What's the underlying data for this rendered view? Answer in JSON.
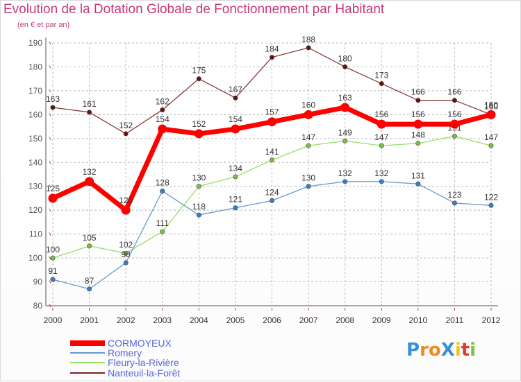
{
  "header": {
    "title": "Evolution de la Dotation Globale de Fonctionnement par Habitant",
    "subtitle": "(en € et par an)"
  },
  "logo": {
    "text": "ProXiti",
    "letters": [
      "P",
      "r",
      "o",
      "X",
      "i",
      "t",
      "i"
    ],
    "colors": [
      "#3a8fd6",
      "#f08a1c",
      "#f08a1c",
      "#3a8fd6",
      "#f0c419",
      "#e03a2a",
      "#7ac143"
    ]
  },
  "colors": {
    "CORMOYEUX": "#ff0000",
    "Romery": "#6699cc",
    "Fleury-la-Rivière": "#99dd66",
    "Nanteuil-la-Forêt": "#772222",
    "axis": "#555555",
    "grid": "#bbbbbb"
  },
  "chart_data": {
    "type": "line",
    "title": "Evolution de la Dotation Globale de Fonctionnement par Habitant",
    "subtitle": "(en € et par an)",
    "xlabel": "",
    "ylabel": "",
    "ylim": [
      80,
      190
    ],
    "yticks": [
      80,
      90,
      100,
      110,
      120,
      130,
      140,
      150,
      160,
      170,
      180,
      190
    ],
    "grid": true,
    "x": [
      "2000",
      "2001",
      "2002",
      "2003",
      "2004",
      "2005",
      "2006",
      "2007",
      "2008",
      "2009",
      "2010",
      "2011",
      "2012"
    ],
    "series": [
      {
        "name": "CORMOYEUX",
        "values": [
          125,
          132,
          120,
          154,
          152,
          154,
          157,
          160,
          163,
          156,
          156,
          156,
          160
        ]
      },
      {
        "name": "Romery",
        "values": [
          91,
          87,
          98,
          128,
          118,
          121,
          124,
          130,
          132,
          132,
          131,
          123,
          122
        ]
      },
      {
        "name": "Fleury-la-Rivière",
        "values": [
          100,
          105,
          102,
          111,
          130,
          134,
          141,
          147,
          149,
          147,
          148,
          151,
          147
        ]
      },
      {
        "name": "Nanteuil-la-Forêt",
        "values": [
          163,
          161,
          152,
          162,
          175,
          167,
          184,
          188,
          180,
          173,
          166,
          166,
          160
        ]
      }
    ],
    "legend": [
      "CORMOYEUX",
      "Romery",
      "Fleury-la-Rivière",
      "Nanteuil-la-Forêt"
    ],
    "legend_position": "bottom-left"
  }
}
